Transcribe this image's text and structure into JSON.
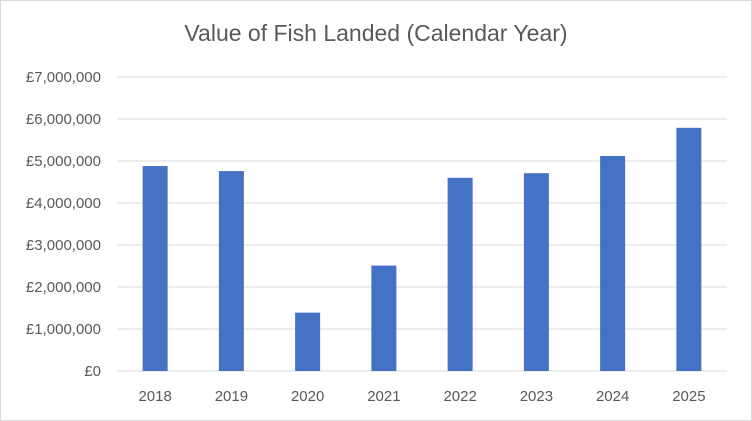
{
  "chart_data": {
    "type": "bar",
    "title": "Value of Fish Landed (Calendar Year)",
    "xlabel": "",
    "ylabel": "",
    "categories": [
      "2018",
      "2019",
      "2020",
      "2021",
      "2022",
      "2023",
      "2024",
      "2025"
    ],
    "values": [
      4880000,
      4760000,
      1390000,
      2510000,
      4600000,
      4710000,
      5120000,
      5790000
    ],
    "ylim": [
      0,
      7000000
    ],
    "yticks": [
      "£0",
      "£1,000,000",
      "£2,000,000",
      "£3,000,000",
      "£4,000,000",
      "£5,000,000",
      "£6,000,000",
      "£7,000,000"
    ],
    "grid": true,
    "legend": "none",
    "bar_color": "#4472c4",
    "grid_color": "#d9d9d9"
  }
}
